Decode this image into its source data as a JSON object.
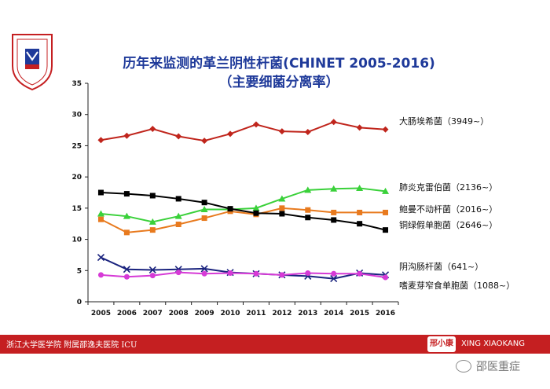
{
  "chart_data": {
    "type": "line",
    "title": "历年来监测的革兰阴性杆菌(CHINET 2005-2016)",
    "subtitle": "（主要细菌分离率）",
    "xlabel": "",
    "ylabel": "",
    "x": [
      "2005",
      "2006",
      "2007",
      "2008",
      "2009",
      "2010",
      "2011",
      "2012",
      "2013",
      "2014",
      "2015",
      "2016"
    ],
    "ylim": [
      0,
      35
    ],
    "yticks": [
      0,
      5,
      10,
      15,
      20,
      25,
      30,
      35
    ],
    "grid": false,
    "legend": "right-end labels",
    "series": [
      {
        "name": "大肠埃希菌（3949~）",
        "color": "#c0251c",
        "marker": "diamond",
        "values": [
          25.9,
          26.6,
          27.7,
          26.5,
          25.8,
          26.9,
          28.4,
          27.3,
          27.2,
          28.8,
          27.9,
          27.6
        ]
      },
      {
        "name": "肺炎克雷伯菌（2136~）",
        "color": "#3ad13a",
        "marker": "triangle",
        "values": [
          14.1,
          13.7,
          12.8,
          13.7,
          14.8,
          14.8,
          15.0,
          16.5,
          17.9,
          18.1,
          18.2,
          17.7
        ]
      },
      {
        "name": "鲍曼不动杆菌（2016~）",
        "color": "#e87a1e",
        "marker": "square",
        "values": [
          13.2,
          11.1,
          11.5,
          12.4,
          13.4,
          14.5,
          14.0,
          15.0,
          14.7,
          14.3,
          14.3,
          14.3
        ]
      },
      {
        "name": "铜绿假单胞菌（2646~）",
        "color": "#000000",
        "marker": "square",
        "values": [
          17.5,
          17.3,
          17.0,
          16.5,
          15.9,
          14.9,
          14.2,
          14.1,
          13.5,
          13.1,
          12.5,
          11.5
        ]
      },
      {
        "name": "阴沟肠杆菌（641~）",
        "color": "#1a237e",
        "marker": "x",
        "values": [
          7.1,
          5.2,
          5.1,
          5.2,
          5.3,
          4.7,
          4.5,
          4.3,
          4.1,
          3.7,
          4.6,
          4.3
        ]
      },
      {
        "name": "嗜麦芽窄食单胞菌（1088~）",
        "color": "#d63ad6",
        "marker": "circle",
        "values": [
          4.3,
          4.0,
          4.2,
          4.7,
          4.5,
          4.6,
          4.5,
          4.3,
          4.6,
          4.5,
          4.5,
          3.9
        ]
      }
    ]
  },
  "logo": {
    "text": "ZUMC SIR RUN RUN SHAW HOSPITAL"
  },
  "footer": {
    "left_text": "浙江大学医学院 附属邵逸夫医院 ICU",
    "badge_text": "邢小康",
    "right_text": "XING XIAOKANG"
  },
  "watermark": {
    "text": "邵医重症"
  },
  "colors": {
    "title": "#1f3a9a",
    "footer_bg": "#c51f21",
    "logo": "#c51f21"
  }
}
